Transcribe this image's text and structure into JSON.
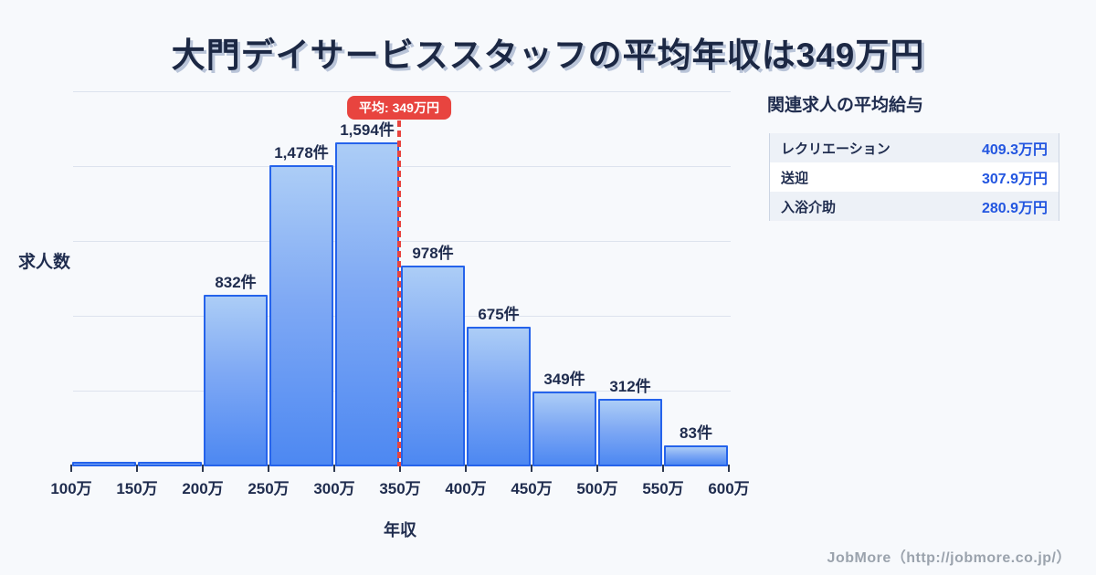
{
  "page": {
    "title": "大門デイサービススタッフの平均年収は349万円",
    "footer_credit": "JobMore（http://jobmore.co.jp/）",
    "background": "#f7f9fc"
  },
  "chart_data": {
    "type": "bar",
    "title": "大門デイサービススタッフの平均年収は349万円",
    "xlabel": "年収",
    "ylabel": "求人数",
    "x_tick_labels": [
      "100万",
      "150万",
      "200万",
      "250万",
      "300万",
      "350万",
      "400万",
      "450万",
      "500万",
      "550万",
      "600万"
    ],
    "grid": true,
    "legend": false,
    "bins": [
      {
        "range": "100万-150万",
        "count": 0,
        "label": ""
      },
      {
        "range": "150万-200万",
        "count": 0,
        "label": ""
      },
      {
        "range": "200万-250万",
        "count": 832,
        "label": "832件"
      },
      {
        "range": "250万-300万",
        "count": 1478,
        "label": "1,478件"
      },
      {
        "range": "300万-350万",
        "count": 1594,
        "label": "1,594件"
      },
      {
        "range": "350万-400万",
        "count": 978,
        "label": "978件"
      },
      {
        "range": "400万-450万",
        "count": 675,
        "label": "675件"
      },
      {
        "range": "450万-500万",
        "count": 349,
        "label": "349件"
      },
      {
        "range": "500万-550万",
        "count": 312,
        "label": "312件"
      },
      {
        "range": "550万-600万",
        "count": 83,
        "label": "83件"
      }
    ],
    "average_annotation": {
      "badge_label": "平均: 349万円",
      "x_value": "349万円"
    }
  },
  "related_panel": {
    "heading": "関連求人の平均給与",
    "rows": [
      {
        "label": "レクリエーション",
        "value": "409.3万円"
      },
      {
        "label": "送迎",
        "value": "307.9万円"
      },
      {
        "label": "入浴介助",
        "value": "280.9万円"
      }
    ]
  },
  "colors": {
    "bar_fill_top": "#accdf6",
    "bar_fill_bottom": "#4d88f2",
    "bar_border": "#2563eb",
    "average_red": "#e8443f",
    "navy_text": "#1f2c4e",
    "value_blue": "#2356e0",
    "gridline": "#dde3ee",
    "footer_gray": "#9ba3ad",
    "row_alt_bg": "#edf1f7"
  }
}
